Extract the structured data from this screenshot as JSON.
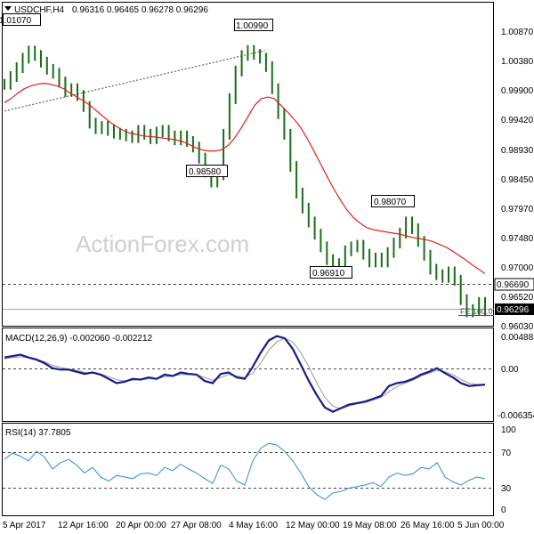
{
  "window": {
    "symbol_label": "USDCHF,H4",
    "ohlc_text": "0.96316 0.96465 0.96278 0.96296",
    "watermark": "ActionForex.com"
  },
  "chart_data": [
    {
      "type": "line",
      "panel": "price",
      "ylim": [
        0.9603,
        1.0125
      ],
      "y_ticks": [
        "1.00870",
        "1.00380",
        "0.99900",
        "0.99420",
        "0.98930",
        "0.98450",
        "0.97970",
        "0.97480",
        "0.97000",
        "0.96520",
        "0.96030"
      ],
      "x_labels": [
        "5 Apr 2017",
        "12 Apr 16:00",
        "20 Apr 00:00",
        "27 Apr 08:00",
        "4 May 16:00",
        "12 May 00:00",
        "19 May 08:00",
        "26 May 16:00",
        "5 Jun 00:00"
      ],
      "series": [
        {
          "name": "",
          "color": "#1a6e1a",
          "values": [
            1.0038,
            1.0052,
            1.0068,
            1.0085,
            1.0098,
            1.009,
            1.0078,
            1.0065,
            1.0058,
            1.0042,
            1.0025,
            1.003,
            1.0018,
            0.9998,
            0.9968,
            0.9958,
            0.9962,
            0.9955,
            0.995,
            0.9948,
            0.9945,
            0.9942,
            0.9955,
            0.9948,
            0.994,
            0.9952,
            0.9955,
            0.9945,
            0.9938,
            0.9945,
            0.9935,
            0.9925,
            0.9905,
            0.988,
            0.9862,
            0.9875,
            0.9948,
            1.0012,
            1.0062,
            1.009,
            1.0099,
            1.0092,
            1.0085,
            1.007,
            1.003,
            0.9985,
            0.9948,
            0.989,
            0.9842,
            0.9815,
            0.979,
            0.9768,
            0.9745,
            0.9722,
            0.97,
            0.9715,
            0.9738,
            0.9745,
            0.9748,
            0.9732,
            0.9718,
            0.9725,
            0.9718,
            0.9735,
            0.9752,
            0.977,
            0.979,
            0.9778,
            0.9755,
            0.973,
            0.9705,
            0.9695,
            0.969,
            0.97,
            0.9685,
            0.965,
            0.9628,
            0.9632,
            0.9645,
            0.963
          ]
        },
        {
          "name": "",
          "color": "#e02020",
          "style": "moving-average",
          "values": [
            1.0005,
            1.0012,
            1.0022,
            1.003,
            1.0035,
            1.0038,
            1.004,
            1.0038,
            1.0035,
            1.003,
            1.0022,
            1.0015,
            1.0008,
            1.0,
            0.999,
            0.998,
            0.997,
            0.9962,
            0.9955,
            0.995,
            0.9948,
            0.9945,
            0.9944,
            0.9943,
            0.9941,
            0.994,
            0.9938,
            0.9935,
            0.993,
            0.9924,
            0.992,
            0.9918,
            0.9918,
            0.992,
            0.9928,
            0.9942,
            0.996,
            0.998,
            1.0,
            1.0012,
            1.0015,
            1.0012,
            1.0,
            0.9988,
            0.9975,
            0.996,
            0.994,
            0.9918,
            0.9895,
            0.9872,
            0.985,
            0.983,
            0.9812,
            0.9798,
            0.9788,
            0.978,
            0.9776,
            0.9774,
            0.9772,
            0.977,
            0.9768,
            0.9765,
            0.9762,
            0.976,
            0.9758,
            0.9755,
            0.975,
            0.9745,
            0.9738,
            0.973,
            0.9722,
            0.9713,
            0.9705,
            0.9697
          ]
        },
        {
          "name": "",
          "color": "#444444",
          "style": "trendline",
          "values": [
            0.999,
            1.0099
          ]
        }
      ],
      "horizontal_lines": [
        {
          "value": 0.9669,
          "label": "0.96690",
          "style": "dashed"
        },
        {
          "value": 0.96296,
          "label": "0.96296",
          "style": "solid-gray"
        }
      ],
      "annotations": [
        "1.01070",
        "1.00990",
        "0.98580",
        "0.96910",
        "0.98070",
        "FE 100.0"
      ]
    },
    {
      "type": "line",
      "panel": "macd",
      "label": "MACD(12,26,9) -0.002060 -0.002212",
      "ylim": [
        -0.006354,
        0.004883
      ],
      "y_ticks": [
        "0.004883",
        "0.00",
        "-0.006354"
      ],
      "series": [
        {
          "name": "",
          "color": "#1a1a8c",
          "values": [
            0.0018,
            0.002,
            0.0022,
            0.0018,
            0.0015,
            0.001,
            0.0003,
            0.0001,
            0.0001,
            -0.0002,
            -0.0005,
            -0.0003,
            -0.0006,
            -0.0012,
            -0.0018,
            -0.0016,
            -0.0012,
            -0.0013,
            -0.001,
            -0.0012,
            -0.0006,
            -0.0008,
            -0.0003,
            -0.0005,
            -0.0006,
            -0.0015,
            -0.0018,
            -0.0005,
            -0.0003,
            -0.001,
            -0.0012,
            0.0005,
            0.0025,
            0.0042,
            0.0048,
            0.0045,
            0.003,
            0.0008,
            -0.0015,
            -0.0035,
            -0.0052,
            -0.0058,
            -0.0053,
            -0.0048,
            -0.0046,
            -0.0044,
            -0.004,
            -0.0036,
            -0.0022,
            -0.0018,
            -0.0016,
            -0.0012,
            -0.0006,
            -0.0002,
            0.0003,
            -0.0004,
            -0.001,
            -0.0018,
            -0.0022,
            -0.0021,
            -0.002
          ]
        },
        {
          "name": "",
          "color": "#9a9a9a",
          "values": [
            0.0016,
            0.0018,
            0.0019,
            0.0018,
            0.0016,
            0.0012,
            0.0007,
            0.0004,
            0.0002,
            0.0,
            -0.0003,
            -0.0004,
            -0.0005,
            -0.0009,
            -0.0013,
            -0.0015,
            -0.0014,
            -0.0013,
            -0.0012,
            -0.0012,
            -0.0009,
            -0.0008,
            -0.0006,
            -0.0006,
            -0.0006,
            -0.001,
            -0.0014,
            -0.001,
            -0.0006,
            -0.0008,
            -0.001,
            -0.0004,
            0.001,
            0.0028,
            0.004,
            0.0045,
            0.004,
            0.0025,
            0.0005,
            -0.0018,
            -0.0038,
            -0.005,
            -0.0054,
            -0.005,
            -0.0047,
            -0.0045,
            -0.0042,
            -0.0038,
            -0.003,
            -0.0023,
            -0.0018,
            -0.0014,
            -0.0008,
            -0.0004,
            0.0,
            -0.0002,
            -0.0006,
            -0.0013,
            -0.0018,
            -0.002,
            -0.0021
          ]
        }
      ]
    },
    {
      "type": "line",
      "panel": "rsi",
      "label": "RSI(14) 37.7805",
      "ylim": [
        0,
        100
      ],
      "y_ticks": [
        "100",
        "70",
        "30",
        "0"
      ],
      "series": [
        {
          "name": "",
          "color": "#2a8fd6",
          "values": [
            62,
            70,
            66,
            60,
            72,
            65,
            50,
            58,
            62,
            55,
            45,
            52,
            40,
            35,
            42,
            40,
            38,
            44,
            45,
            42,
            52,
            48,
            56,
            50,
            45,
            38,
            32,
            55,
            50,
            35,
            30,
            60,
            76,
            82,
            80,
            72,
            60,
            45,
            28,
            18,
            12,
            20,
            22,
            26,
            28,
            30,
            33,
            28,
            40,
            45,
            42,
            44,
            52,
            50,
            58,
            40,
            34,
            30,
            36,
            40,
            37.8
          ]
        }
      ]
    }
  ]
}
